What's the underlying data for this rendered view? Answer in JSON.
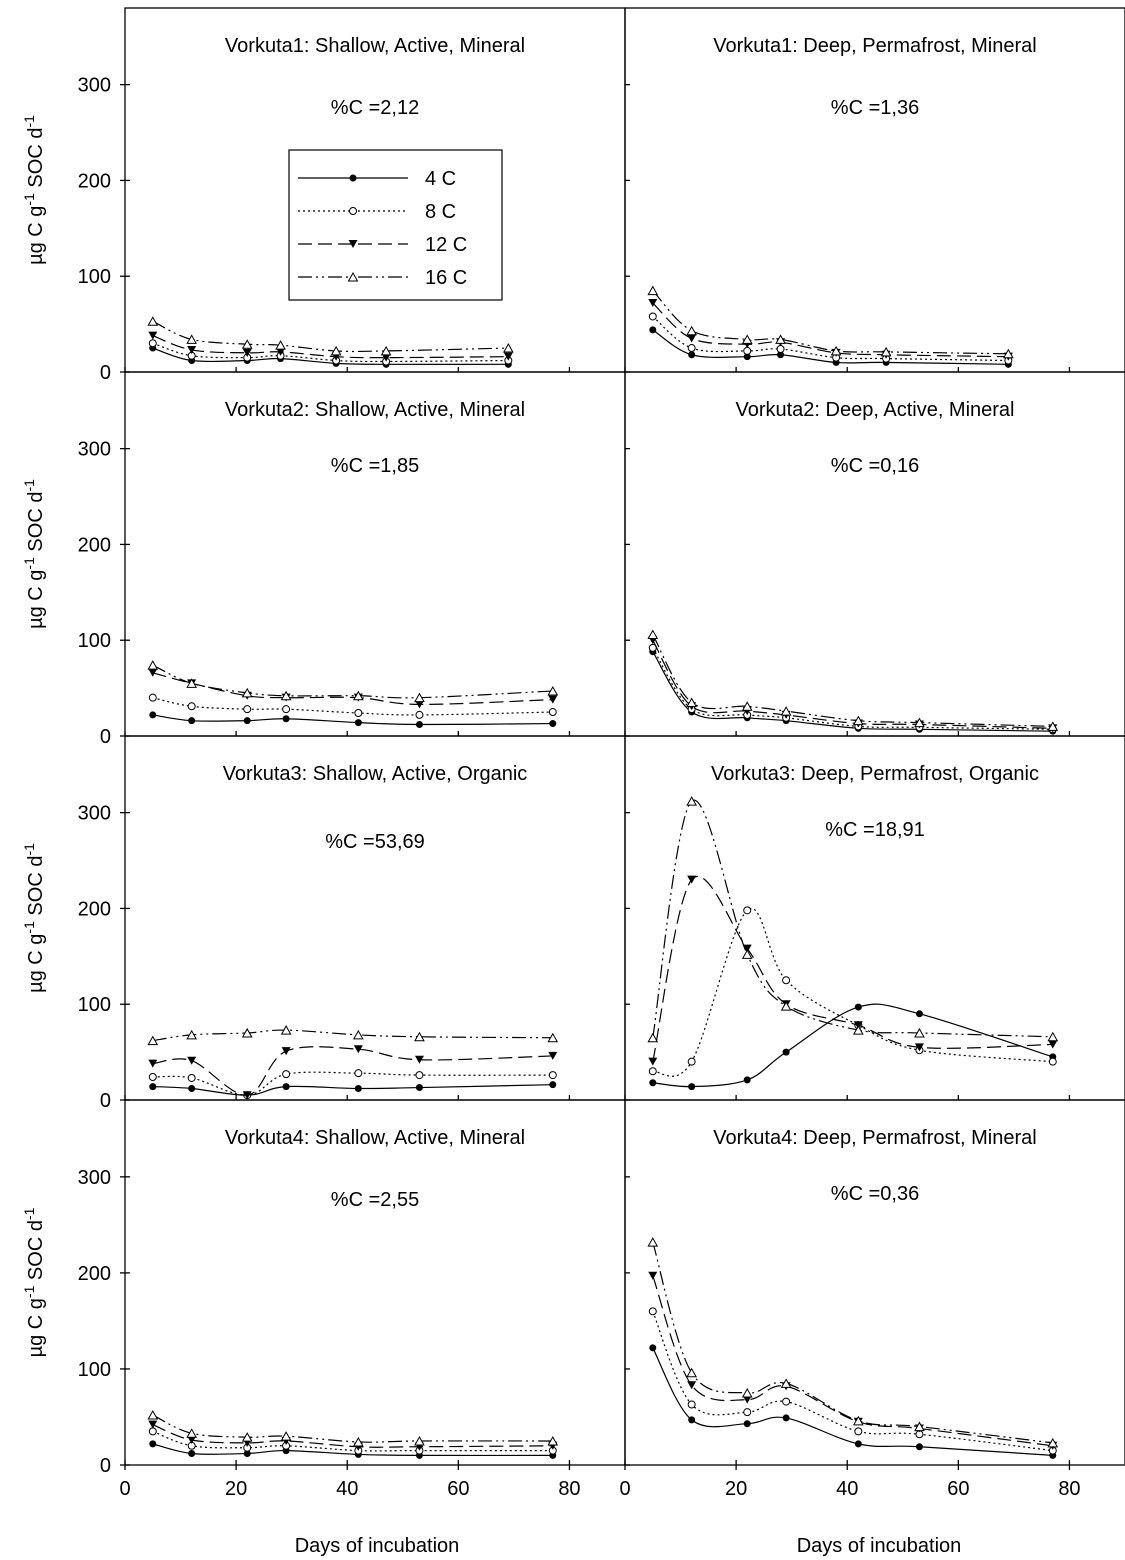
{
  "figure": {
    "y_axis_label": "µg C g⁻¹ SOC d⁻¹",
    "x_axis_label": "Days of incubation",
    "legend": [
      "4 C",
      "8 C",
      "12 C",
      "16 C"
    ]
  },
  "chart_data": [
    {
      "type": "line",
      "title": "Vorkuta1: Shallow, Active, Mineral",
      "annotation": "%C =2,12",
      "xlabel": "",
      "ylabel": "µg C g-1 SOC d-1",
      "xlim": [
        0,
        90
      ],
      "ylim": [
        0,
        380
      ],
      "xticks": [],
      "yticks": [
        0,
        100,
        200,
        300
      ],
      "legend_placement": "upper-center",
      "x": [
        5,
        12,
        22,
        28,
        38,
        47,
        69
      ],
      "series": [
        {
          "name": "4 C",
          "values": [
            25,
            12,
            12,
            14,
            9,
            8,
            8
          ]
        },
        {
          "name": "8 C",
          "values": [
            30,
            17,
            15,
            17,
            12,
            11,
            12
          ]
        },
        {
          "name": "12 C",
          "values": [
            38,
            23,
            20,
            21,
            16,
            15,
            16
          ]
        },
        {
          "name": "16 C",
          "values": [
            53,
            34,
            29,
            28,
            22,
            22,
            25
          ]
        }
      ]
    },
    {
      "type": "line",
      "title": "Vorkuta1: Deep, Permafrost, Mineral",
      "annotation": "%C =1,36",
      "xlabel": "",
      "ylabel": "",
      "xlim": [
        0,
        90
      ],
      "ylim": [
        0,
        380
      ],
      "xticks": [],
      "yticks": [],
      "x": [
        5,
        12,
        22,
        28,
        38,
        47,
        69
      ],
      "series": [
        {
          "name": "4 C",
          "values": [
            44,
            18,
            16,
            18,
            10,
            10,
            8
          ]
        },
        {
          "name": "8 C",
          "values": [
            58,
            25,
            22,
            24,
            15,
            14,
            12
          ]
        },
        {
          "name": "12 C",
          "values": [
            72,
            35,
            29,
            31,
            20,
            18,
            16
          ]
        },
        {
          "name": "16 C",
          "values": [
            85,
            43,
            34,
            34,
            22,
            21,
            19
          ]
        }
      ]
    },
    {
      "type": "line",
      "title": "Vorkuta2: Shallow, Active, Mineral",
      "annotation": "%C =1,85",
      "xlabel": "",
      "ylabel": "µg C g-1 SOC d-1",
      "xlim": [
        0,
        90
      ],
      "ylim": [
        0,
        380
      ],
      "xticks": [],
      "yticks": [
        0,
        100,
        200,
        300
      ],
      "x": [
        5,
        12,
        22,
        29,
        42,
        53,
        77
      ],
      "series": [
        {
          "name": "4 C",
          "values": [
            22,
            16,
            16,
            18,
            14,
            12,
            13
          ]
        },
        {
          "name": "8 C",
          "values": [
            40,
            31,
            28,
            28,
            24,
            22,
            25
          ]
        },
        {
          "name": "12 C",
          "values": [
            66,
            55,
            42,
            40,
            40,
            33,
            38
          ]
        },
        {
          "name": "16 C",
          "values": [
            74,
            55,
            45,
            42,
            42,
            40,
            47
          ]
        }
      ]
    },
    {
      "type": "line",
      "title": "Vorkuta2: Deep, Active, Mineral",
      "annotation": "%C =0,16",
      "xlabel": "",
      "ylabel": "",
      "xlim": [
        0,
        90
      ],
      "ylim": [
        0,
        380
      ],
      "xticks": [],
      "yticks": [],
      "x": [
        5,
        12,
        22,
        29,
        42,
        53,
        77
      ],
      "series": [
        {
          "name": "4 C",
          "values": [
            88,
            25,
            19,
            16,
            8,
            7,
            5
          ]
        },
        {
          "name": "8 C",
          "values": [
            92,
            28,
            22,
            19,
            10,
            9,
            7
          ]
        },
        {
          "name": "12 C",
          "values": [
            100,
            31,
            26,
            22,
            13,
            12,
            8
          ]
        },
        {
          "name": "16 C",
          "values": [
            106,
            35,
            31,
            26,
            16,
            14,
            10
          ]
        }
      ]
    },
    {
      "type": "line",
      "title": "Vorkuta3: Shallow, Active, Organic",
      "annotation": "%C =53,69",
      "xlabel": "",
      "ylabel": "µg C g-1 SOC d-1",
      "xlim": [
        0,
        90
      ],
      "ylim": [
        0,
        380
      ],
      "xticks": [],
      "yticks": [
        0,
        100,
        200,
        300
      ],
      "x": [
        5,
        12,
        22,
        29,
        42,
        53,
        77
      ],
      "series": [
        {
          "name": "4 C",
          "values": [
            14,
            12,
            5,
            14,
            12,
            13,
            16
          ]
        },
        {
          "name": "8 C",
          "values": [
            24,
            23,
            5,
            27,
            28,
            26,
            26
          ]
        },
        {
          "name": "12 C",
          "values": [
            38,
            41,
            5,
            51,
            53,
            42,
            46
          ]
        },
        {
          "name": "16 C",
          "values": [
            62,
            68,
            70,
            73,
            68,
            66,
            65
          ]
        }
      ]
    },
    {
      "type": "line",
      "title": "Vorkuta3: Deep, Permafrost, Organic",
      "annotation": "%C =18,91",
      "xlabel": "",
      "ylabel": "",
      "xlim": [
        0,
        90
      ],
      "ylim": [
        0,
        380
      ],
      "xticks": [],
      "yticks": [],
      "x": [
        5,
        12,
        22,
        29,
        42,
        53,
        77
      ],
      "series": [
        {
          "name": "4 C",
          "values": [
            18,
            14,
            21,
            50,
            97,
            90,
            45
          ]
        },
        {
          "name": "8 C",
          "values": [
            30,
            40,
            198,
            125,
            78,
            52,
            40
          ]
        },
        {
          "name": "12 C",
          "values": [
            40,
            230,
            158,
            100,
            78,
            55,
            58
          ]
        },
        {
          "name": "16 C",
          "values": [
            65,
            312,
            152,
            98,
            73,
            70,
            66
          ]
        }
      ]
    },
    {
      "type": "line",
      "title": "Vorkuta4: Shallow, Active, Mineral",
      "annotation": "%C =2,55",
      "xlabel": "Days of incubation",
      "ylabel": "µg C g-1 SOC d-1",
      "xlim": [
        0,
        90
      ],
      "ylim": [
        0,
        380
      ],
      "xticks": [
        0,
        20,
        40,
        60,
        80
      ],
      "yticks": [
        0,
        100,
        200,
        300
      ],
      "x": [
        5,
        12,
        22,
        29,
        42,
        53,
        77
      ],
      "series": [
        {
          "name": "4 C",
          "values": [
            22,
            12,
            12,
            15,
            11,
            10,
            10
          ]
        },
        {
          "name": "8 C",
          "values": [
            35,
            20,
            18,
            20,
            15,
            15,
            15
          ]
        },
        {
          "name": "12 C",
          "values": [
            42,
            26,
            23,
            25,
            19,
            19,
            20
          ]
        },
        {
          "name": "16 C",
          "values": [
            52,
            33,
            29,
            30,
            24,
            25,
            25
          ]
        }
      ]
    },
    {
      "type": "line",
      "title": "Vorkuta4: Deep, Permafrost, Mineral",
      "annotation": "%C =0,36",
      "xlabel": "Days of incubation",
      "ylabel": "",
      "xlim": [
        0,
        90
      ],
      "ylim": [
        0,
        380
      ],
      "xticks": [
        0,
        20,
        40,
        60,
        80
      ],
      "yticks": [],
      "x": [
        5,
        12,
        22,
        29,
        42,
        53,
        77
      ],
      "series": [
        {
          "name": "4 C",
          "values": [
            122,
            47,
            43,
            49,
            22,
            19,
            10
          ]
        },
        {
          "name": "8 C",
          "values": [
            160,
            63,
            55,
            66,
            35,
            32,
            15
          ]
        },
        {
          "name": "12 C",
          "values": [
            197,
            83,
            68,
            82,
            45,
            38,
            20
          ]
        },
        {
          "name": "16 C",
          "values": [
            232,
            96,
            75,
            85,
            46,
            40,
            23
          ]
        }
      ]
    }
  ]
}
